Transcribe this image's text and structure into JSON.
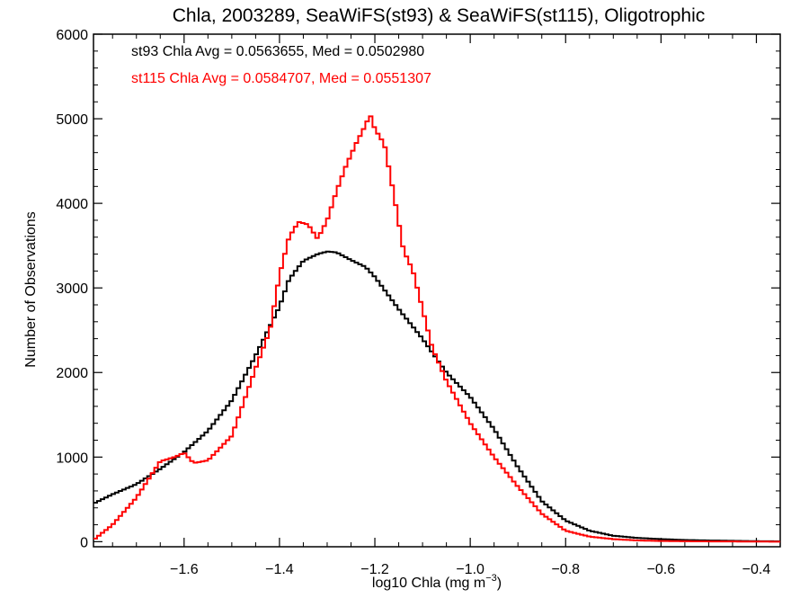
{
  "chart_data": {
    "type": "line",
    "title": "Chla, 2003289, SeaWiFS(st93) & SeaWiFS(st115), Oligotrophic",
    "xlabel": "log10 Chla (mg m",
    "xlabel_sup": "−3",
    "xlabel_close": ")",
    "ylabel": "Number of Observations",
    "xlim": [
      -1.79,
      -0.35
    ],
    "ylim": [
      -60,
      6000
    ],
    "x_ticks": [
      -1.6,
      -1.4,
      -1.2,
      -1.0,
      -0.8,
      -0.6,
      -0.4
    ],
    "x_tick_labels": [
      "−1.6",
      "−1.4",
      "−1.2",
      "−1.0",
      "−0.8",
      "−0.6",
      "−0.4"
    ],
    "y_ticks": [
      0,
      1000,
      2000,
      3000,
      4000,
      5000,
      6000
    ],
    "y_tick_labels": [
      "0",
      "1000",
      "2000",
      "3000",
      "4000",
      "5000",
      "6000"
    ],
    "grid": false,
    "annotations": [
      {
        "text": "st93 Chla Avg = 0.0563655, Med = 0.0502980",
        "color": "#000000"
      },
      {
        "text": "st115 Chla Avg = 0.0584707, Med = 0.0551307",
        "color": "#ff0000"
      }
    ],
    "series": [
      {
        "color": "#000000",
        "x": [
          -1.79,
          -1.75,
          -1.7,
          -1.65,
          -1.6,
          -1.55,
          -1.5,
          -1.45,
          -1.4,
          -1.38,
          -1.35,
          -1.32,
          -1.3,
          -1.28,
          -1.25,
          -1.22,
          -1.2,
          -1.15,
          -1.1,
          -1.05,
          -1.0,
          -0.95,
          -0.9,
          -0.85,
          -0.8,
          -0.75,
          -0.7,
          -0.65,
          -0.6,
          -0.55,
          -0.5,
          -0.45,
          -0.4,
          -0.35
        ],
        "y": [
          450,
          560,
          680,
          860,
          1060,
          1310,
          1670,
          2200,
          2780,
          3100,
          3320,
          3400,
          3430,
          3420,
          3330,
          3250,
          3130,
          2750,
          2400,
          2000,
          1710,
          1330,
          880,
          480,
          250,
          130,
          70,
          45,
          30,
          20,
          14,
          10,
          6,
          4
        ]
      },
      {
        "color": "#ff0000",
        "x": [
          -1.79,
          -1.75,
          -1.7,
          -1.65,
          -1.62,
          -1.6,
          -1.58,
          -1.55,
          -1.5,
          -1.45,
          -1.42,
          -1.4,
          -1.38,
          -1.36,
          -1.34,
          -1.32,
          -1.3,
          -1.28,
          -1.26,
          -1.24,
          -1.22,
          -1.21,
          -1.2,
          -1.18,
          -1.16,
          -1.14,
          -1.12,
          -1.1,
          -1.08,
          -1.05,
          -1.0,
          -0.95,
          -0.9,
          -0.85,
          -0.8,
          -0.75,
          -0.7,
          -0.65,
          -0.6,
          -0.55,
          -0.5,
          -0.45,
          -0.4,
          -0.35
        ],
        "y": [
          20,
          200,
          520,
          950,
          1000,
          1050,
          930,
          960,
          1250,
          2050,
          2500,
          3150,
          3600,
          3780,
          3750,
          3580,
          3800,
          4150,
          4450,
          4700,
          4920,
          5050,
          4880,
          4700,
          4100,
          3450,
          3200,
          2750,
          2300,
          1900,
          1400,
          1000,
          650,
          330,
          130,
          60,
          30,
          15,
          8,
          5,
          3,
          2,
          1,
          0
        ]
      }
    ]
  }
}
